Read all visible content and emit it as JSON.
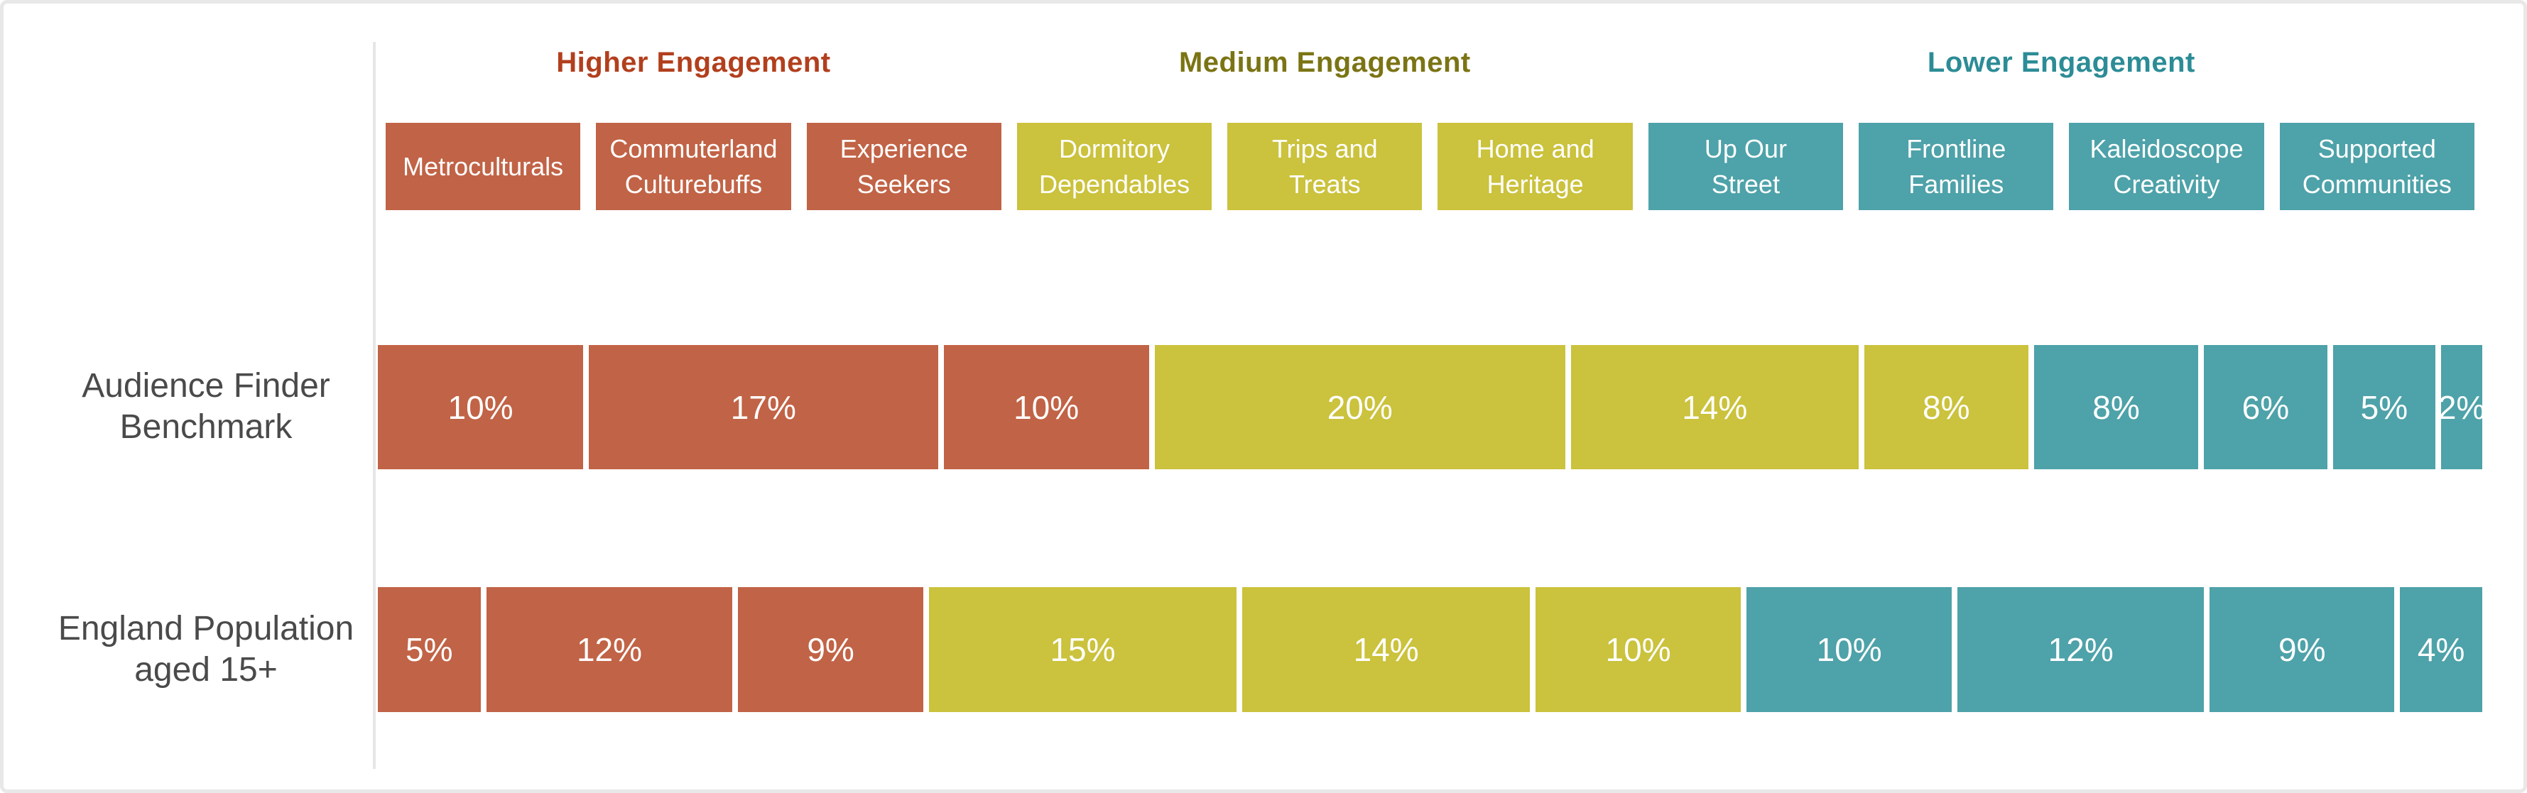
{
  "chart_data": {
    "type": "bar",
    "subtype": "stacked-horizontal-100pct",
    "title": "",
    "value_suffix": "%",
    "grid": false,
    "legend_position": "none",
    "xlim": [
      0,
      100
    ],
    "engagement_groups": [
      {
        "id": "higher",
        "label": "Higher Engagement",
        "text_color": "#B23F1D",
        "fill": "#C16346",
        "segment_count": 3
      },
      {
        "id": "medium",
        "label": "Medium Engagement",
        "text_color": "#7B7414",
        "fill": "#CBC23D",
        "segment_count": 3
      },
      {
        "id": "lower",
        "label": "Lower Engagement",
        "text_color": "#2C8C96",
        "fill": "#4EA2A9",
        "segment_count": 4
      }
    ],
    "categories": [
      {
        "label": "Metroculturals",
        "group": "higher"
      },
      {
        "label": "Commuterland\nCulturebuffs",
        "group": "higher"
      },
      {
        "label": "Experience\nSeekers",
        "group": "higher"
      },
      {
        "label": "Dormitory\nDependables",
        "group": "medium"
      },
      {
        "label": "Trips and\nTreats",
        "group": "medium"
      },
      {
        "label": "Home and\nHeritage",
        "group": "medium"
      },
      {
        "label": "Up Our\nStreet",
        "group": "lower"
      },
      {
        "label": "Frontline\nFamilies",
        "group": "lower"
      },
      {
        "label": "Kaleidoscope\nCreativity",
        "group": "lower"
      },
      {
        "label": "Supported\nCommunities",
        "group": "lower"
      }
    ],
    "series": [
      {
        "name": "Audience Finder Benchmark",
        "values": [
          10,
          17,
          10,
          20,
          14,
          8,
          8,
          6,
          5,
          2
        ]
      },
      {
        "name": "England Population aged 15+",
        "values": [
          5,
          12,
          9,
          15,
          14,
          10,
          10,
          12,
          9,
          4
        ]
      }
    ]
  },
  "colors": {
    "background": "#FFFFFF",
    "frame_border": "#E8E8E8",
    "axis_line": "#E6E6E6",
    "row_label_text": "#4A4A4A",
    "bar_value_text": "#FFFFFF"
  }
}
